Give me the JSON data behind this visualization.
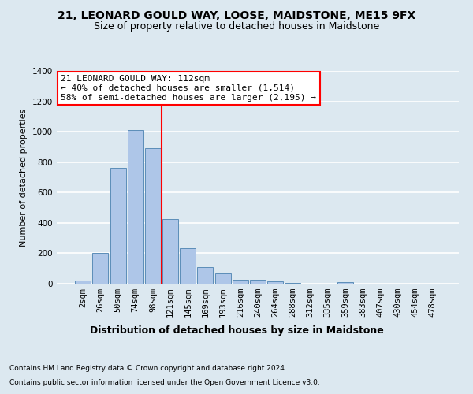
{
  "title": "21, LEONARD GOULD WAY, LOOSE, MAIDSTONE, ME15 9FX",
  "subtitle": "Size of property relative to detached houses in Maidstone",
  "xlabel": "Distribution of detached houses by size in Maidstone",
  "ylabel": "Number of detached properties",
  "footnote1": "Contains HM Land Registry data © Crown copyright and database right 2024.",
  "footnote2": "Contains public sector information licensed under the Open Government Licence v3.0.",
  "categories": [
    "2sqm",
    "26sqm",
    "50sqm",
    "74sqm",
    "98sqm",
    "121sqm",
    "145sqm",
    "169sqm",
    "193sqm",
    "216sqm",
    "240sqm",
    "264sqm",
    "288sqm",
    "312sqm",
    "335sqm",
    "359sqm",
    "383sqm",
    "407sqm",
    "430sqm",
    "454sqm",
    "478sqm"
  ],
  "values": [
    20,
    200,
    760,
    1010,
    890,
    425,
    235,
    110,
    68,
    25,
    25,
    15,
    5,
    0,
    0,
    12,
    0,
    0,
    0,
    0,
    0
  ],
  "bar_color": "#aec6e8",
  "bar_edge_color": "#5b8db8",
  "vline_x": 4.5,
  "vline_color": "red",
  "annotation_title": "21 LEONARD GOULD WAY: 112sqm",
  "annotation_line1": "← 40% of detached houses are smaller (1,514)",
  "annotation_line2": "58% of semi-detached houses are larger (2,195) →",
  "annotation_box_facecolor": "white",
  "annotation_box_edgecolor": "red",
  "ylim": [
    0,
    1400
  ],
  "yticks": [
    0,
    200,
    400,
    600,
    800,
    1000,
    1200,
    1400
  ],
  "background_color": "#dce8f0",
  "axes_background": "#dce8f0",
  "grid_color": "white",
  "title_fontsize": 10,
  "subtitle_fontsize": 9,
  "xlabel_fontsize": 9,
  "ylabel_fontsize": 8,
  "tick_fontsize": 7.5,
  "annotation_fontsize": 8,
  "footnote_fontsize": 6.5
}
